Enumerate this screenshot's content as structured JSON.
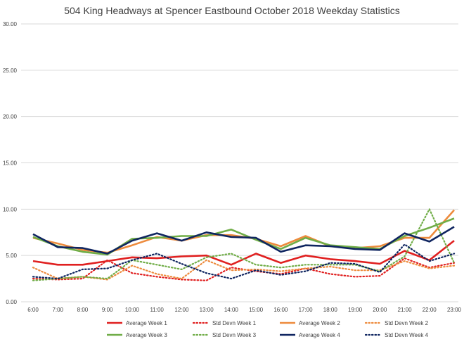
{
  "chart_data": {
    "type": "line",
    "title": "504 King Headways at Spencer Eastbound October 2018 Weekday Statistics",
    "xlabel": "",
    "ylabel": "",
    "categories": [
      "6:00",
      "7:00",
      "8:00",
      "9:00",
      "10:00",
      "11:00",
      "12:00",
      "13:00",
      "14:00",
      "15:00",
      "16:00",
      "17:00",
      "18:00",
      "19:00",
      "20:00",
      "21:00",
      "22:00",
      "23:00"
    ],
    "ylim": [
      0,
      30
    ],
    "yticks": [
      "0.00",
      "5.00",
      "10.00",
      "15.00",
      "20.00",
      "25.00",
      "30.00"
    ],
    "grid": "horizontal",
    "legend_position": "bottom",
    "series": [
      {
        "name": "Average Week 1",
        "color": "#e02020",
        "style": "solid",
        "values": [
          4.4,
          4.0,
          4.0,
          4.4,
          4.8,
          4.7,
          4.9,
          5.0,
          4.0,
          5.2,
          4.2,
          5.0,
          4.6,
          4.4,
          4.1,
          5.5,
          4.5,
          6.6
        ]
      },
      {
        "name": "Std Devn Week 1",
        "color": "#e02020",
        "style": "dotted",
        "values": [
          2.5,
          2.4,
          2.5,
          4.5,
          3.1,
          2.7,
          2.4,
          2.3,
          3.7,
          3.3,
          3.0,
          3.6,
          3.0,
          2.7,
          2.8,
          4.7,
          3.7,
          4.2
        ]
      },
      {
        "name": "Average Week 2",
        "color": "#ed8b3d",
        "style": "solid",
        "values": [
          6.9,
          6.3,
          5.6,
          5.3,
          6.1,
          7.0,
          6.6,
          7.2,
          7.2,
          6.8,
          6.0,
          7.1,
          6.0,
          5.8,
          6.0,
          6.9,
          6.9,
          9.9
        ]
      },
      {
        "name": "Std Devn Week 2",
        "color": "#ed8b3d",
        "style": "dotted",
        "values": [
          3.7,
          2.5,
          2.7,
          2.4,
          3.9,
          3.0,
          2.5,
          4.5,
          3.4,
          3.5,
          3.3,
          3.6,
          3.8,
          3.4,
          3.4,
          4.4,
          3.6,
          3.9
        ]
      },
      {
        "name": "Average Week 3",
        "color": "#70ad47",
        "style": "solid",
        "values": [
          7.0,
          6.0,
          5.4,
          5.1,
          6.8,
          6.9,
          7.1,
          7.1,
          7.8,
          6.7,
          5.7,
          6.9,
          6.1,
          5.9,
          5.7,
          7.1,
          8.0,
          9.0
        ]
      },
      {
        "name": "Std Devn Week 3",
        "color": "#70ad47",
        "style": "dotted",
        "values": [
          2.3,
          2.5,
          2.7,
          2.5,
          4.5,
          4.0,
          3.5,
          4.8,
          5.2,
          4.0,
          3.7,
          4.0,
          4.0,
          4.0,
          3.3,
          4.9,
          10.0,
          4.2
        ]
      },
      {
        "name": "Average Week 4",
        "color": "#0f2560",
        "style": "solid",
        "values": [
          7.3,
          5.9,
          5.8,
          5.2,
          6.6,
          7.4,
          6.6,
          7.5,
          7.0,
          6.9,
          5.4,
          6.1,
          6.0,
          5.7,
          5.6,
          7.4,
          6.5,
          8.1
        ]
      },
      {
        "name": "Std Devn Week 4",
        "color": "#0f2560",
        "style": "dotted",
        "values": [
          2.7,
          2.5,
          3.5,
          3.6,
          4.5,
          5.2,
          4.1,
          3.1,
          2.5,
          3.4,
          2.9,
          3.3,
          4.2,
          4.1,
          3.2,
          6.2,
          4.4,
          5.2
        ]
      }
    ]
  }
}
